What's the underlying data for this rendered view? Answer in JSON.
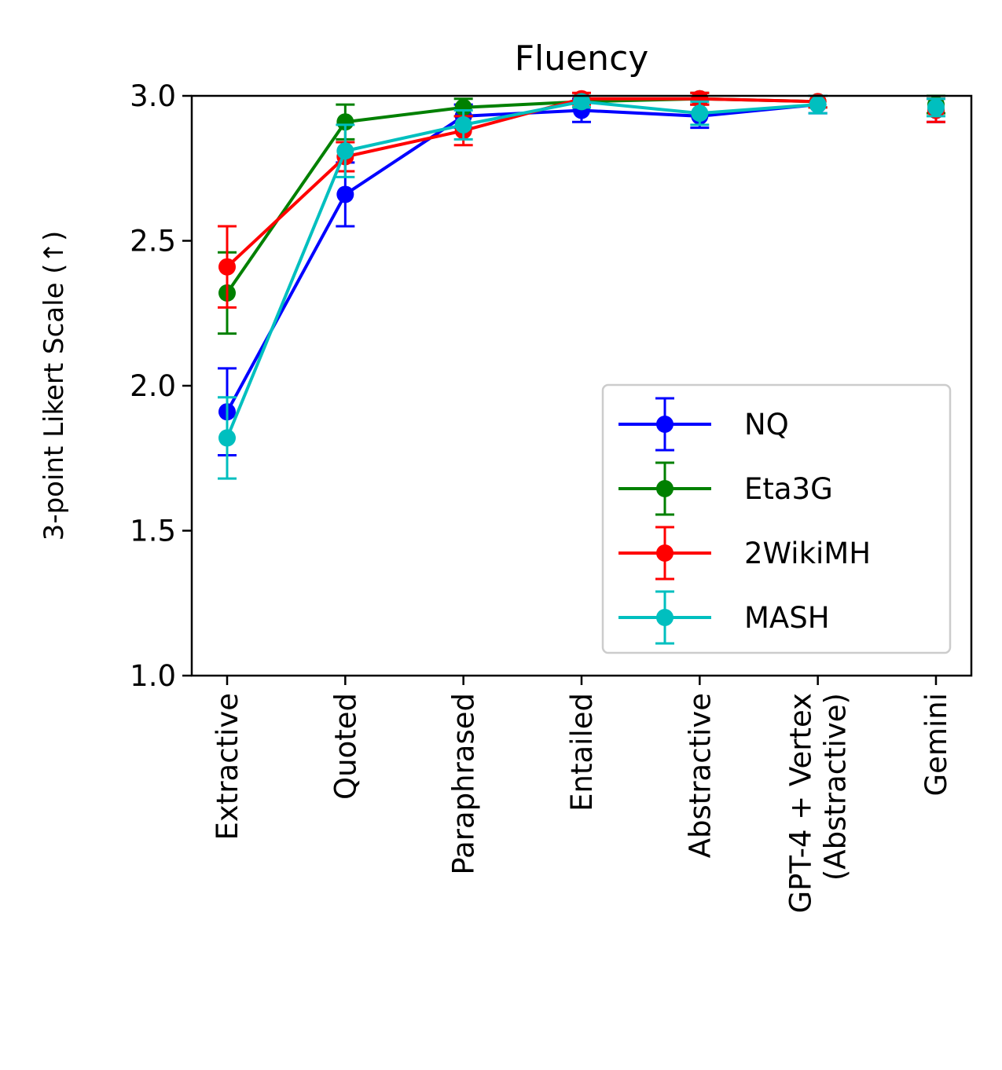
{
  "chart_data": {
    "type": "line",
    "title": "Fluency",
    "xlabel": "",
    "ylabel": "3-point Likert Scale (↑)",
    "ylim": [
      1.0,
      3.0
    ],
    "yticks": [
      "1.0",
      "1.5",
      "2.0",
      "2.5",
      "3.0"
    ],
    "categories": [
      [
        "Extractive"
      ],
      [
        "Quoted"
      ],
      [
        "Paraphrased"
      ],
      [
        "Entailed"
      ],
      [
        "Abstractive"
      ],
      [
        "GPT-4 + Vertex",
        "(Abstractive)"
      ],
      [
        "Gemini"
      ]
    ],
    "grid": false,
    "legend_position": "lower-right",
    "series": [
      {
        "name": "NQ",
        "color": "#0000ff",
        "values": [
          1.91,
          2.66,
          2.93,
          2.95,
          2.93,
          2.97,
          2.95
        ],
        "errors": [
          0.15,
          0.11,
          0.04,
          0.04,
          0.04,
          0.03,
          0.04
        ],
        "connect": [
          true,
          true,
          true,
          true,
          true,
          false
        ]
      },
      {
        "name": "Eta3G",
        "color": "#008000",
        "values": [
          2.32,
          2.91,
          2.96,
          2.98,
          2.99,
          2.98,
          2.97
        ],
        "errors": [
          0.14,
          0.06,
          0.03,
          0.02,
          0.02,
          0.02,
          0.03
        ],
        "connect": [
          true,
          true,
          true,
          true,
          true,
          false
        ]
      },
      {
        "name": "2WikiMH",
        "color": "#ff0000",
        "values": [
          2.41,
          2.79,
          2.88,
          2.99,
          2.99,
          2.98,
          2.95
        ],
        "errors": [
          0.14,
          0.05,
          0.05,
          0.02,
          0.02,
          0.02,
          0.04
        ],
        "connect": [
          true,
          true,
          true,
          true,
          true,
          false
        ]
      },
      {
        "name": "MASH",
        "color": "#00bfbf",
        "values": [
          1.82,
          2.81,
          2.9,
          2.98,
          2.94,
          2.97,
          2.96
        ],
        "errors": [
          0.14,
          0.09,
          0.05,
          0.02,
          0.04,
          0.03,
          0.03
        ],
        "connect": [
          true,
          true,
          true,
          true,
          true,
          false
        ]
      }
    ]
  }
}
